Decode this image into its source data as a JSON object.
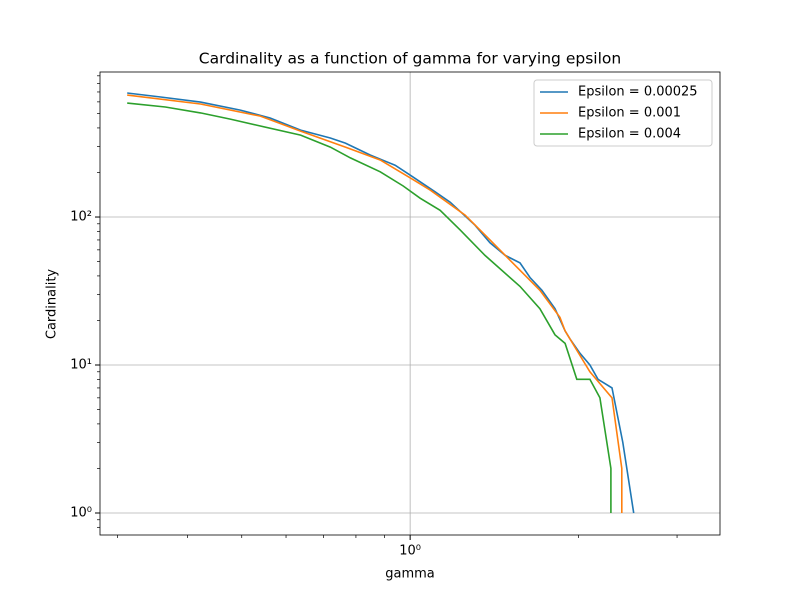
{
  "chart_data": {
    "type": "line",
    "title": "Cardinality as a function of gamma for varying epsilon",
    "xlabel": "gamma",
    "ylabel": "Cardinality",
    "xscale": "log",
    "yscale": "log",
    "grid": true,
    "legend": "upper right",
    "xlim": [
      0.279,
      3.58
    ],
    "ylim": [
      0.71,
      955
    ],
    "xticks": [
      {
        "value": 1,
        "label": "10⁰"
      }
    ],
    "xminorticks": [
      0.3,
      0.4,
      0.5,
      0.6,
      0.7,
      0.8,
      0.9,
      2,
      3
    ],
    "yticks": [
      {
        "value": 1,
        "label": "10⁰"
      },
      {
        "value": 10,
        "label": "10¹"
      },
      {
        "value": 100,
        "label": "10²"
      }
    ],
    "yminorticks": [
      0.8,
      0.9,
      2,
      3,
      4,
      5,
      6,
      7,
      8,
      9,
      20,
      30,
      40,
      50,
      60,
      70,
      80,
      90,
      200,
      300,
      400,
      500,
      600,
      700,
      800,
      900
    ],
    "series": [
      {
        "name": "Epsilon = 0.00025",
        "color": "#1f77b4",
        "x": [
          0.312,
          0.358,
          0.422,
          0.497,
          0.562,
          0.637,
          0.72,
          0.766,
          0.849,
          0.94,
          1,
          1.108,
          1.179,
          1.306,
          1.389,
          1.479,
          1.572,
          1.638,
          1.72,
          1.815,
          1.892,
          1.931,
          2.012,
          2.096,
          2.167,
          2.295,
          2.4,
          2.51
        ],
        "values": [
          689,
          647,
          598,
          528,
          467,
          387,
          342,
          316,
          262,
          224,
          192,
          148,
          126,
          88,
          67,
          55,
          49,
          39,
          32,
          24,
          17,
          15,
          12,
          10,
          8,
          7,
          3,
          1
        ]
      },
      {
        "name": "Epsilon = 0.001",
        "color": "#ff7f0e",
        "x": [
          0.312,
          0.422,
          0.54,
          0.637,
          0.766,
          0.884,
          1,
          1.086,
          1.254,
          1.389,
          1.509,
          1.706,
          1.852,
          1.892,
          2.096,
          2.295,
          2.39,
          2.39
        ],
        "values": [
          667,
          580,
          481,
          381,
          297,
          243,
          184,
          152,
          103,
          70,
          51,
          32,
          21,
          17,
          9,
          6,
          2,
          1
        ]
      },
      {
        "name": "Epsilon = 0.004",
        "color": "#2ca02c",
        "x": [
          0.312,
          0.365,
          0.422,
          0.477,
          0.529,
          0.637,
          0.72,
          0.782,
          0.884,
          0.972,
          1.042,
          1.131,
          1.228,
          1.361,
          1.572,
          1.706,
          1.815,
          1.892,
          1.986,
          2.096,
          2.184,
          2.285,
          2.285
        ],
        "values": [
          589,
          554,
          505,
          459,
          419,
          358,
          297,
          251,
          202,
          162,
          134,
          111,
          82,
          55,
          34,
          24,
          16,
          14,
          8,
          8,
          6,
          2,
          1
        ]
      }
    ]
  }
}
